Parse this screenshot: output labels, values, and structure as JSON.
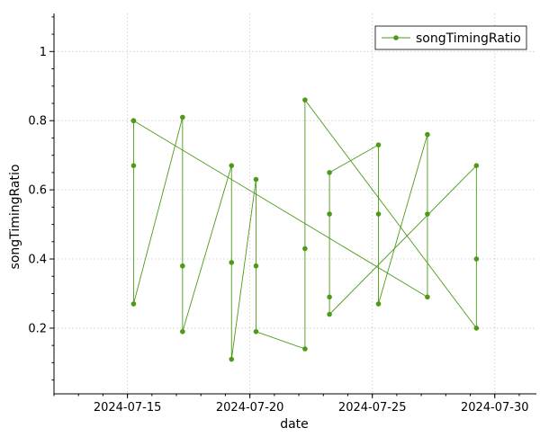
{
  "chart_data": {
    "type": "line",
    "xlabel": "date",
    "ylabel": "songTimingRatio",
    "x_ticks": [
      "2024-07-15",
      "2024-07-20",
      "2024-07-25",
      "2024-07-30"
    ],
    "y_ticks": [
      "0.2",
      "0.4",
      "0.6",
      "0.8",
      "1"
    ],
    "xlim": [
      "2024-07-12",
      "2024-07-31.7"
    ],
    "ylim": [
      0.01,
      1.11
    ],
    "grid": true,
    "legend_position": "top-right",
    "colors": {
      "series": "#4c9a17"
    },
    "series": [
      {
        "name": "songTimingRatio",
        "points": [
          {
            "x": "2024-07-15.25",
            "y": 0.8
          },
          {
            "x": "2024-07-15.25",
            "y": 0.67
          },
          {
            "x": "2024-07-15.25",
            "y": 0.27
          },
          {
            "x": "2024-07-17.25",
            "y": 0.81
          },
          {
            "x": "2024-07-17.25",
            "y": 0.38
          },
          {
            "x": "2024-07-17.25",
            "y": 0.19
          },
          {
            "x": "2024-07-19.25",
            "y": 0.67
          },
          {
            "x": "2024-07-19.25",
            "y": 0.39
          },
          {
            "x": "2024-07-19.25",
            "y": 0.11
          },
          {
            "x": "2024-07-20.25",
            "y": 0.63
          },
          {
            "x": "2024-07-20.25",
            "y": 0.38
          },
          {
            "x": "2024-07-20.25",
            "y": 0.19
          },
          {
            "x": "2024-07-22.25",
            "y": 0.14
          },
          {
            "x": "2024-07-22.25",
            "y": 0.43
          },
          {
            "x": "2024-07-22.25",
            "y": 0.86
          },
          {
            "x": "2024-07-29.25",
            "y": 0.2
          },
          {
            "x": "2024-07-29.25",
            "y": 0.4
          },
          {
            "x": "2024-07-29.25",
            "y": 0.67
          },
          {
            "x": "2024-07-23.25",
            "y": 0.24
          },
          {
            "x": "2024-07-23.25",
            "y": 0.29
          },
          {
            "x": "2024-07-23.25",
            "y": 0.53
          },
          {
            "x": "2024-07-23.25",
            "y": 0.65
          },
          {
            "x": "2024-07-25.25",
            "y": 0.73
          },
          {
            "x": "2024-07-25.25",
            "y": 0.53
          },
          {
            "x": "2024-07-25.25",
            "y": 0.27
          },
          {
            "x": "2024-07-27.25",
            "y": 0.76
          },
          {
            "x": "2024-07-27.25",
            "y": 0.53
          },
          {
            "x": "2024-07-27.25",
            "y": 0.29
          },
          {
            "x": "2024-07-15.25",
            "y": 0.8
          }
        ]
      }
    ]
  }
}
